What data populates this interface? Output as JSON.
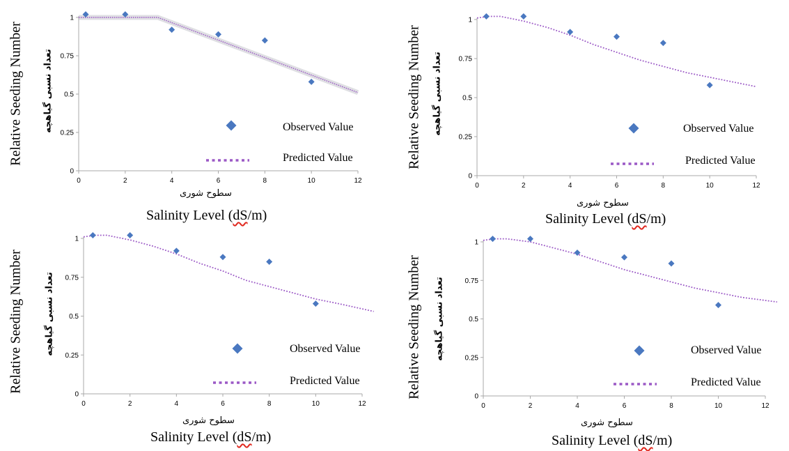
{
  "colors": {
    "observed": "#4a78c0",
    "predicted": "#9b59c6",
    "axis": "#a8a8a8",
    "band": "#b9b9c2"
  },
  "labels": {
    "y_label": "Relative Seeding Number",
    "y_label_fa": "تعداد نسبی گیاهچه",
    "x_label_fa": "سطوح شوری",
    "x_label_prefix": "Salinity Level  (",
    "x_label_unit": "dS",
    "x_label_suffix": "/m)",
    "legend_observed": "Observed Value",
    "legend_predicted": "Predicted Value"
  },
  "chart_data": [
    {
      "type": "scatter",
      "xlim": [
        0,
        12
      ],
      "ylim": [
        0,
        1
      ],
      "xticks": [
        "0",
        "2",
        "4",
        "6",
        "8",
        "10",
        "12"
      ],
      "yticks": [
        "0",
        "0.25",
        "0.5",
        "0.75",
        "1"
      ],
      "observed": {
        "x": [
          0.3,
          2,
          4,
          6,
          8,
          10
        ],
        "y": [
          1.02,
          1.02,
          0.92,
          0.89,
          0.85,
          0.58
        ]
      },
      "predicted": {
        "style": "piecewise-linear with confidence band",
        "x": [
          0,
          3.4,
          12
        ],
        "y": [
          1.0,
          1.0,
          0.51
        ]
      },
      "legend": "right"
    },
    {
      "type": "scatter",
      "xlim": [
        0,
        12
      ],
      "ylim": [
        0,
        1
      ],
      "xticks": [
        "0",
        "2",
        "4",
        "6",
        "8",
        "10",
        "12"
      ],
      "yticks": [
        "0",
        "0.25",
        "0.5",
        "0.75",
        "1"
      ],
      "observed": {
        "x": [
          0.4,
          2,
          4,
          6,
          8,
          10
        ],
        "y": [
          1.02,
          1.02,
          0.92,
          0.89,
          0.85,
          0.58
        ]
      },
      "predicted": {
        "style": "dotted",
        "x": [
          0,
          0.5,
          1,
          2,
          3,
          4,
          5,
          6,
          7,
          8,
          9,
          10,
          11,
          12
        ],
        "y": [
          1.01,
          1.02,
          1.02,
          0.99,
          0.95,
          0.9,
          0.84,
          0.79,
          0.74,
          0.7,
          0.66,
          0.63,
          0.6,
          0.57
        ]
      },
      "legend": "right"
    },
    {
      "type": "scatter",
      "xlim": [
        0,
        12
      ],
      "ylim": [
        0,
        1
      ],
      "xticks": [
        "0",
        "2",
        "4",
        "6",
        "8",
        "10",
        "12"
      ],
      "yticks": [
        "0",
        "0.25",
        "0.5",
        "0.75",
        "1"
      ],
      "observed": {
        "x": [
          0.4,
          2,
          4,
          6,
          8,
          10
        ],
        "y": [
          1.02,
          1.02,
          0.92,
          0.88,
          0.85,
          0.58
        ]
      },
      "predicted": {
        "style": "dotted",
        "x": [
          0,
          0.5,
          1,
          2,
          3,
          4,
          5,
          6,
          7,
          8,
          9,
          10,
          11,
          12.5
        ],
        "y": [
          1.01,
          1.02,
          1.02,
          0.99,
          0.95,
          0.9,
          0.84,
          0.79,
          0.73,
          0.69,
          0.65,
          0.61,
          0.58,
          0.53
        ]
      },
      "legend": "right"
    },
    {
      "type": "scatter",
      "xlim": [
        0,
        12
      ],
      "ylim": [
        0,
        1
      ],
      "xticks": [
        "0",
        "2",
        "4",
        "6",
        "8",
        "10",
        "12"
      ],
      "yticks": [
        "0",
        "0.25",
        "0.5",
        "0.75",
        "1"
      ],
      "observed": {
        "x": [
          0.4,
          2,
          4,
          6,
          8,
          10
        ],
        "y": [
          1.02,
          1.02,
          0.93,
          0.9,
          0.86,
          0.59
        ]
      },
      "predicted": {
        "style": "dotted",
        "x": [
          0,
          0.5,
          1,
          2,
          3,
          4,
          5,
          6,
          7,
          8,
          9,
          10,
          11,
          12.5
        ],
        "y": [
          1.01,
          1.02,
          1.02,
          1.0,
          0.96,
          0.92,
          0.87,
          0.82,
          0.78,
          0.74,
          0.7,
          0.67,
          0.64,
          0.61
        ]
      },
      "legend": "right"
    }
  ]
}
